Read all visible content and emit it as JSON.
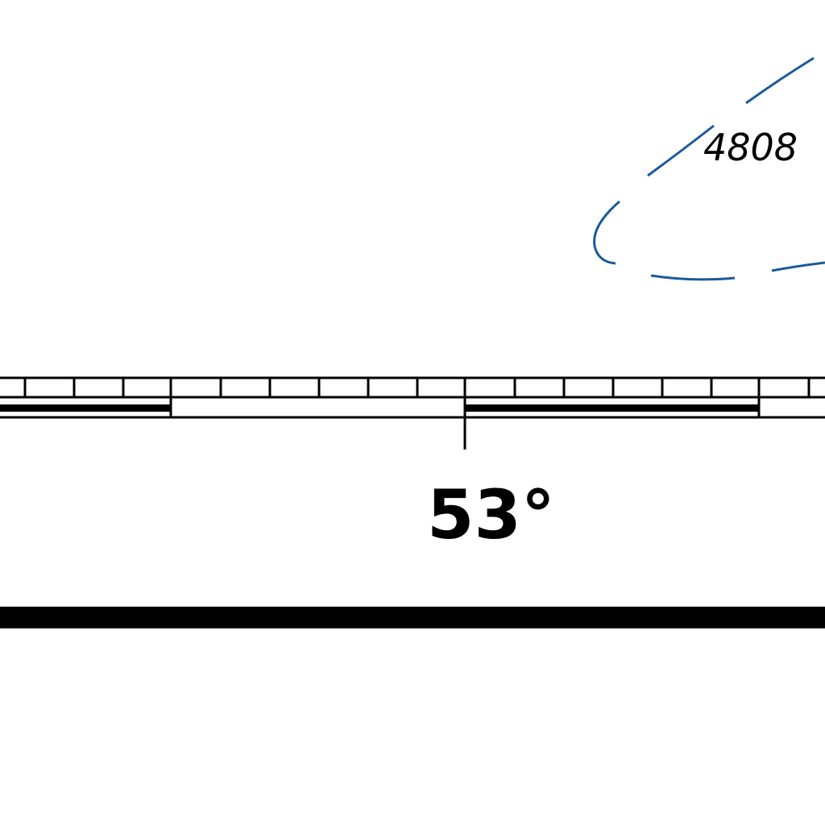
{
  "map": {
    "contour_label": "4808",
    "latitude_label": "53°"
  },
  "colors": {
    "contour": "#1a5a9a",
    "ink": "#000000",
    "background": "#ffffff"
  }
}
